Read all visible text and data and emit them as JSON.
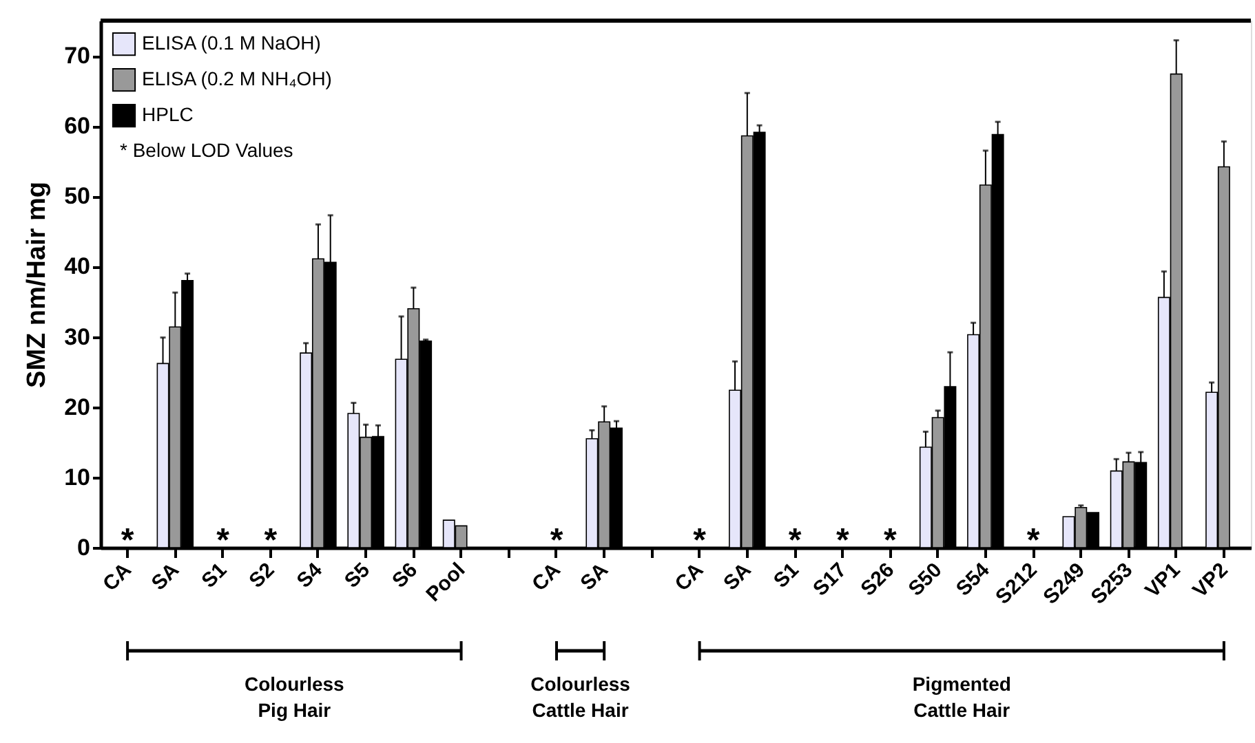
{
  "chart_data": {
    "type": "bar",
    "ylabel": "SMZ nm/Hair mg",
    "categories": [
      "CA",
      "SA",
      "S1",
      "S2",
      "S4",
      "S5",
      "S6",
      "Pool",
      null,
      "CA",
      "SA",
      null,
      "CA",
      "SA",
      "S1",
      "S17",
      "S26",
      "S50",
      "S54",
      "S212",
      "S249",
      "S253",
      "VP1",
      "VP2"
    ],
    "series": [
      {
        "name": "ELISA (0.1 M NaOH)",
        "color": "#e6e6fa",
        "values": [
          null,
          26.2,
          null,
          null,
          27.7,
          19.1,
          26.8,
          3.9,
          null,
          null,
          15.5,
          null,
          null,
          22.4,
          null,
          null,
          null,
          14.3,
          30.3,
          null,
          4.4,
          10.9,
          35.6,
          22.1
        ],
        "errors": [
          null,
          3.7,
          null,
          null,
          1.4,
          1.5,
          6.1,
          null,
          null,
          null,
          1.2,
          null,
          null,
          4.1,
          null,
          null,
          null,
          2.2,
          1.7,
          null,
          null,
          1.7,
          3.7,
          1.4
        ]
      },
      {
        "name": "ELISA (0.2 M NH₄OH)",
        "color": "#999999",
        "values": [
          null,
          31.4,
          null,
          null,
          41.1,
          15.7,
          34.0,
          3.1,
          null,
          null,
          17.9,
          null,
          null,
          58.6,
          null,
          null,
          null,
          18.5,
          51.6,
          null,
          5.7,
          12.2,
          67.4,
          54.2
        ],
        "errors": [
          null,
          4.9,
          null,
          null,
          4.9,
          1.8,
          3.0,
          null,
          null,
          null,
          2.2,
          null,
          null,
          6.1,
          null,
          null,
          null,
          1.0,
          4.9,
          null,
          0.3,
          1.3,
          4.8,
          3.6
        ]
      },
      {
        "name": "HPLC",
        "color": "#000000",
        "values": [
          null,
          38.0,
          null,
          null,
          40.6,
          15.8,
          29.4,
          null,
          null,
          null,
          17.0,
          null,
          null,
          59.1,
          null,
          null,
          null,
          22.9,
          58.8,
          null,
          5.0,
          12.1,
          null,
          null
        ],
        "errors": [
          null,
          1.0,
          null,
          null,
          6.7,
          1.6,
          0.2,
          null,
          null,
          null,
          1.0,
          null,
          null,
          1.0,
          null,
          null,
          null,
          4.9,
          1.8,
          null,
          null,
          1.5,
          null,
          null
        ]
      }
    ],
    "ylim": [
      0,
      75
    ],
    "yticks": [
      0,
      10,
      20,
      30,
      40,
      50,
      60,
      70
    ],
    "grid": false,
    "legend": "top left",
    "annotations": [
      "* Below LOD Values",
      "*",
      "*",
      "*",
      "*",
      "*",
      "*",
      "*",
      "*",
      "*",
      "Colourless\nPig Hair",
      "Colourless\nCattle Hair",
      "Pigmented\nCattle Hair"
    ]
  }
}
